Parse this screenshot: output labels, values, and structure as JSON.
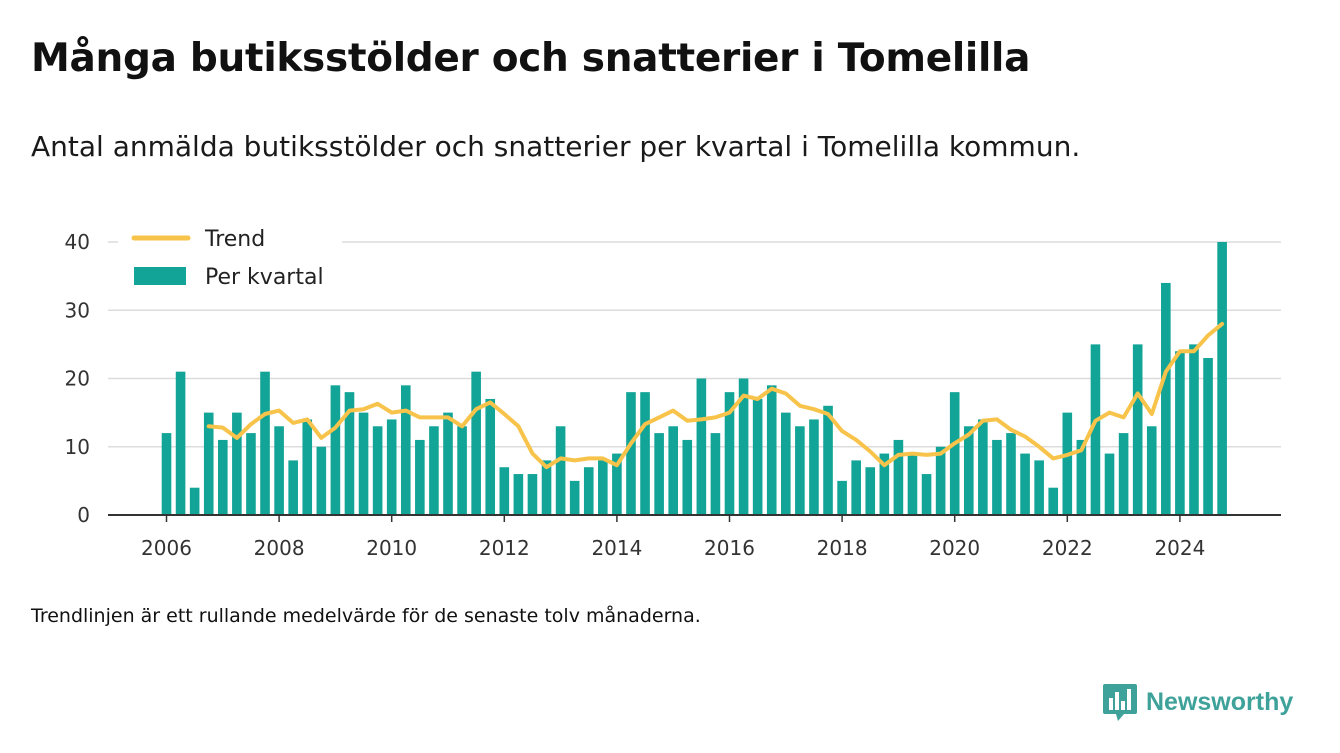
{
  "title": "Många butiksstölder och snatterier i Tomelilla",
  "subtitle": "Antal anmälda butiksstölder och snatterier per kvartal i Tomelilla kommun.",
  "footnote": "Trendlinjen är ett rullande medelvärde för de senaste tolv månaderna.",
  "brand": {
    "name": "Newsworthy",
    "icon": "newsworthy-logo-icon",
    "color": "#3ea29a"
  },
  "colors": {
    "bar": "#11a497",
    "trend": "#f8c34a",
    "grid": "#dcdcdc",
    "axis": "#333333"
  },
  "chart_data": {
    "type": "bar",
    "legend": {
      "position": "top-left",
      "trend_label": "Trend",
      "bar_label": "Per kvartal"
    },
    "ylim": [
      0,
      40
    ],
    "yticks": [
      0,
      10,
      20,
      30,
      40
    ],
    "xticks": [
      "2006",
      "2008",
      "2010",
      "2012",
      "2014",
      "2016",
      "2018",
      "2020",
      "2022",
      "2024"
    ],
    "grid": true,
    "series": [
      {
        "name": "Per kvartal",
        "type": "bar",
        "x": [
          "2006Q1",
          "2006Q2",
          "2006Q3",
          "2006Q4",
          "2007Q1",
          "2007Q2",
          "2007Q3",
          "2007Q4",
          "2008Q1",
          "2008Q2",
          "2008Q3",
          "2008Q4",
          "2009Q1",
          "2009Q2",
          "2009Q3",
          "2009Q4",
          "2010Q1",
          "2010Q2",
          "2010Q3",
          "2010Q4",
          "2011Q1",
          "2011Q2",
          "2011Q3",
          "2011Q4",
          "2012Q1",
          "2012Q2",
          "2012Q3",
          "2012Q4",
          "2013Q1",
          "2013Q2",
          "2013Q3",
          "2013Q4",
          "2014Q1",
          "2014Q2",
          "2014Q3",
          "2014Q4",
          "2015Q1",
          "2015Q2",
          "2015Q3",
          "2015Q4",
          "2016Q1",
          "2016Q2",
          "2016Q3",
          "2016Q4",
          "2017Q1",
          "2017Q2",
          "2017Q3",
          "2017Q4",
          "2018Q1",
          "2018Q2",
          "2018Q3",
          "2018Q4",
          "2019Q1",
          "2019Q2",
          "2019Q3",
          "2019Q4",
          "2020Q1",
          "2020Q2",
          "2020Q3",
          "2020Q4",
          "2021Q1",
          "2021Q2",
          "2021Q3",
          "2021Q4",
          "2022Q1",
          "2022Q2",
          "2022Q3",
          "2022Q4",
          "2023Q1",
          "2023Q2",
          "2023Q3",
          "2023Q4",
          "2024Q1",
          "2024Q2",
          "2024Q3",
          "2024Q4"
        ],
        "values": [
          12,
          21,
          4,
          15,
          11,
          15,
          12,
          21,
          13,
          8,
          14,
          10,
          19,
          18,
          15,
          13,
          14,
          19,
          11,
          13,
          15,
          13,
          21,
          17,
          7,
          6,
          6,
          8,
          13,
          5,
          7,
          8,
          9,
          18,
          18,
          12,
          13,
          11,
          20,
          12,
          18,
          20,
          17,
          19,
          15,
          13,
          14,
          16,
          5,
          8,
          7,
          9,
          11,
          9,
          6,
          10,
          18,
          13,
          14,
          11,
          12,
          9,
          8,
          4,
          15,
          11,
          25,
          9,
          12,
          25,
          13,
          34,
          24,
          25,
          23,
          40
        ]
      },
      {
        "name": "Trend",
        "type": "line",
        "x": [
          "2006Q4",
          "2007Q1",
          "2007Q2",
          "2007Q3",
          "2007Q4",
          "2008Q1",
          "2008Q2",
          "2008Q3",
          "2008Q4",
          "2009Q1",
          "2009Q2",
          "2009Q3",
          "2009Q4",
          "2010Q1",
          "2010Q2",
          "2010Q3",
          "2010Q4",
          "2011Q1",
          "2011Q2",
          "2011Q3",
          "2011Q4",
          "2012Q1",
          "2012Q2",
          "2012Q3",
          "2012Q4",
          "2013Q1",
          "2013Q2",
          "2013Q3",
          "2013Q4",
          "2014Q1",
          "2014Q2",
          "2014Q3",
          "2014Q4",
          "2015Q1",
          "2015Q2",
          "2015Q3",
          "2015Q4",
          "2016Q1",
          "2016Q2",
          "2016Q3",
          "2016Q4",
          "2017Q1",
          "2017Q2",
          "2017Q3",
          "2017Q4",
          "2018Q1",
          "2018Q2",
          "2018Q3",
          "2018Q4",
          "2019Q1",
          "2019Q2",
          "2019Q3",
          "2019Q4",
          "2020Q1",
          "2020Q2",
          "2020Q3",
          "2020Q4",
          "2021Q1",
          "2021Q2",
          "2021Q3",
          "2021Q4",
          "2022Q1",
          "2022Q2",
          "2022Q3",
          "2022Q4",
          "2023Q1",
          "2023Q2",
          "2023Q3",
          "2023Q4",
          "2024Q1",
          "2024Q2",
          "2024Q3",
          "2024Q4"
        ],
        "values": [
          13.0,
          12.8,
          11.3,
          13.3,
          14.8,
          15.3,
          13.5,
          14.0,
          11.3,
          12.8,
          15.3,
          15.5,
          16.3,
          15.0,
          15.3,
          14.3,
          14.3,
          14.3,
          13.0,
          15.5,
          16.5,
          14.8,
          13.0,
          9.0,
          7.0,
          8.3,
          8.0,
          8.3,
          8.3,
          7.3,
          10.5,
          13.3,
          14.3,
          15.3,
          13.8,
          14.0,
          14.3,
          15.0,
          17.5,
          17.0,
          18.5,
          17.8,
          16.0,
          15.5,
          14.8,
          12.3,
          11.0,
          9.3,
          7.3,
          8.8,
          9.0,
          8.8,
          9.0,
          10.5,
          11.8,
          13.8,
          14.0,
          12.5,
          11.5,
          10.0,
          8.3,
          8.8,
          9.5,
          13.8,
          15.0,
          14.3,
          17.8,
          14.8,
          21.0,
          24.0,
          24.0,
          26.3,
          28.0
        ]
      }
    ]
  }
}
